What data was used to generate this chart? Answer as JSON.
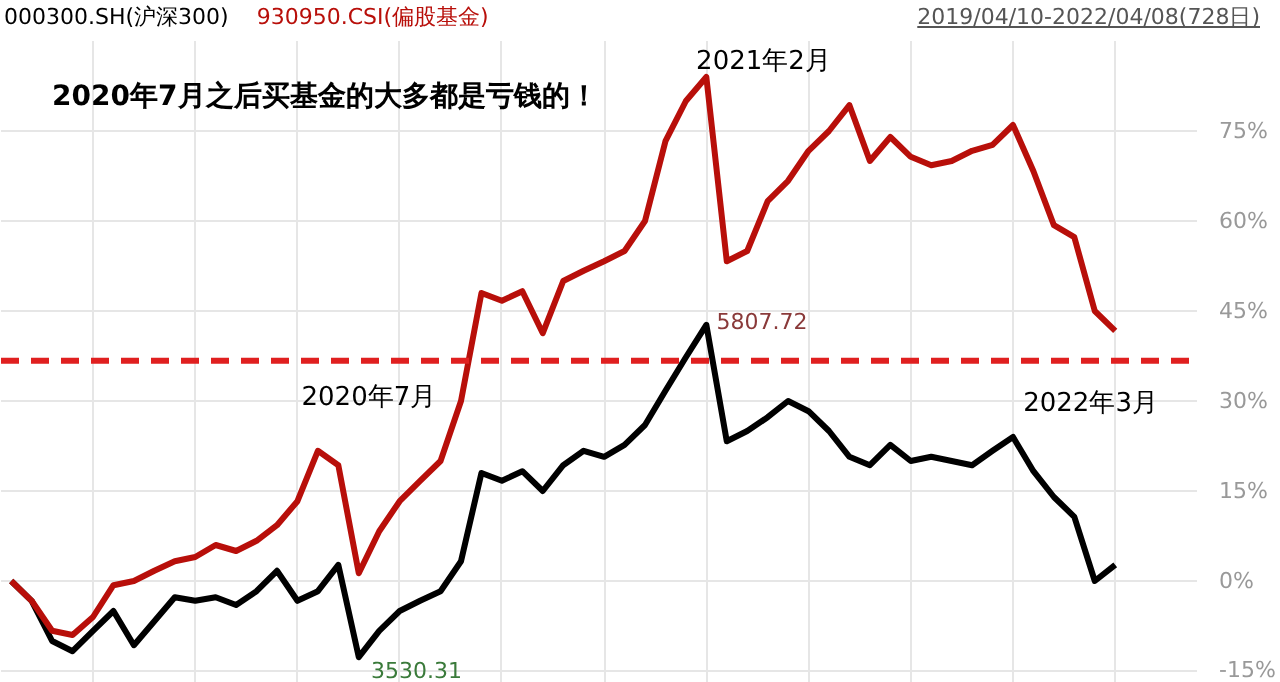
{
  "chart_data": {
    "type": "line",
    "title": "2020年7月之后买基金的大多都是亏钱的！",
    "subtitle": "2019/04/10-2022/04/08(728日)",
    "categories": [
      null,
      null,
      null,
      null,
      null,
      null,
      null,
      null,
      null,
      null,
      null,
      null,
      null,
      null,
      null,
      null,
      null,
      null,
      null,
      null,
      null,
      null,
      null,
      null,
      null,
      null,
      null,
      null,
      null,
      null,
      null,
      null,
      null,
      null,
      null,
      null,
      null,
      null,
      null,
      null,
      null,
      null,
      null,
      null,
      null,
      null,
      null,
      null,
      null,
      null,
      null,
      null,
      null,
      null,
      null
    ],
    "series": [
      {
        "name": "000300.SH(沪深300)",
        "color": "#000000",
        "values": [
          0,
          -3.3,
          -10,
          -11.7,
          -8.3,
          -5,
          -10.7,
          -6.7,
          -2.7,
          -3.3,
          -2.7,
          -4,
          -1.7,
          1.7,
          -3.3,
          -1.7,
          2.7,
          -12.7,
          -8.3,
          -5,
          -3.3,
          -1.7,
          3.3,
          18,
          16.7,
          18.3,
          15,
          19.3,
          21.7,
          20.7,
          22.7,
          26,
          31.7,
          37.3,
          42.7,
          23.3,
          25,
          27.3,
          30,
          28.3,
          25,
          20.7,
          19.3,
          22.7,
          20,
          20.7,
          20,
          19.3,
          21.7,
          24,
          18.3,
          14,
          10.7,
          0,
          2.7
        ]
      },
      {
        "name": "930950.CSI(偏股基金)",
        "color": "#b80f0a",
        "values": [
          0,
          -3.3,
          -8.3,
          -9,
          -6,
          -0.7,
          0,
          1.7,
          3.3,
          4,
          6,
          5,
          6.7,
          9.3,
          13.3,
          21.7,
          19.3,
          1.3,
          8.3,
          13.3,
          16.7,
          20,
          30,
          48,
          46.7,
          48.3,
          41.3,
          50,
          51.7,
          53.3,
          55,
          60,
          73.3,
          80,
          84,
          53.3,
          55,
          63.3,
          66.7,
          71.7,
          75,
          79.3,
          70,
          74,
          70.7,
          69.3,
          70,
          71.7,
          72.7,
          76,
          68.3,
          59.3,
          57.3,
          45,
          41.7
        ]
      }
    ],
    "ylim": [
      -17,
      90
    ],
    "yticks": [
      {
        "value": -15,
        "label": "-15%"
      },
      {
        "value": 0,
        "label": "0%"
      },
      {
        "value": 15,
        "label": "15%"
      },
      {
        "value": 30,
        "label": "30%"
      },
      {
        "value": 45,
        "label": "45%"
      },
      {
        "value": 60,
        "label": "60%"
      },
      {
        "value": 75,
        "label": "75%"
      }
    ],
    "tick_labels": "y",
    "grid": true,
    "legend": "top left",
    "line_style": "solid",
    "ref_lines": [
      {
        "axis": "y",
        "value": 36.7,
        "color": "#e02020",
        "line_style": "dashed"
      }
    ],
    "annotations": [
      "2020年7月",
      "2021年2月",
      "2022年3月",
      "5807.72",
      "3530.31"
    ]
  }
}
